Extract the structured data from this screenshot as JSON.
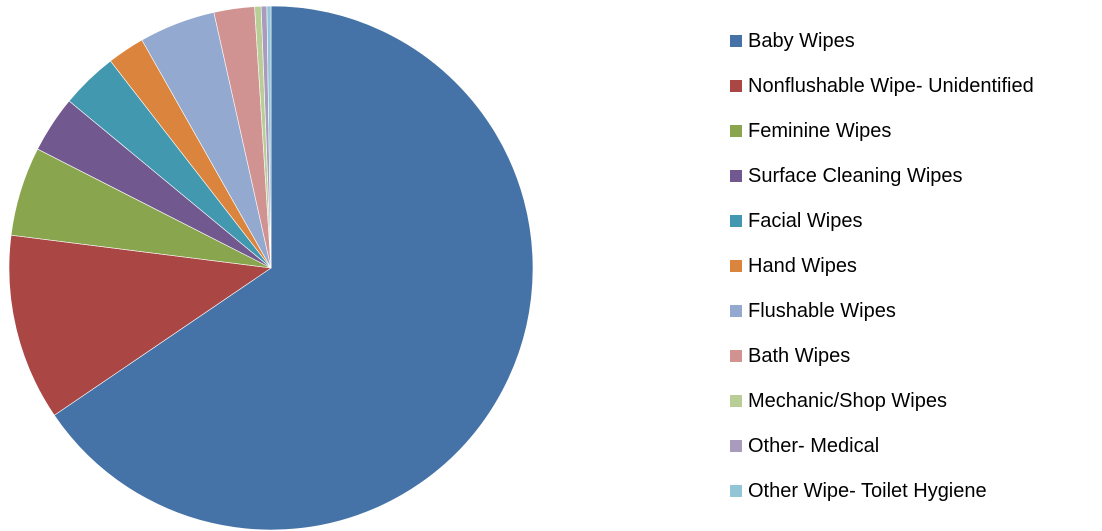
{
  "chart_data": {
    "type": "pie",
    "title": "",
    "legend_position": "right",
    "start_angle_deg": 0,
    "direction": "clockwise",
    "slices": [
      {
        "label": "Baby Wipes",
        "value": 65.5,
        "color": "#4572A7"
      },
      {
        "label": "Nonflushable Wipe- Unidentified",
        "value": 11.5,
        "color": "#AA4643"
      },
      {
        "label": "Feminine  Wipes",
        "value": 5.5,
        "color": "#89A54E"
      },
      {
        "label": "Surface Cleaning Wipes",
        "value": 3.5,
        "color": "#71588F"
      },
      {
        "label": "Facial Wipes",
        "value": 3.5,
        "color": "#4198AF"
      },
      {
        "label": "Hand Wipes",
        "value": 2.3,
        "color": "#DB843D"
      },
      {
        "label": "Flushable Wipes",
        "value": 4.7,
        "color": "#93A9CF"
      },
      {
        "label": "Bath Wipes",
        "value": 2.5,
        "color": "#D19392"
      },
      {
        "label": "Mechanic/Shop Wipes",
        "value": 0.4,
        "color": "#B9CD96"
      },
      {
        "label": "Other- Medical",
        "value": 0.35,
        "color": "#A99BBD"
      },
      {
        "label": "Other Wipe- Toilet Hygiene",
        "value": 0.25,
        "color": "#92C5D6"
      }
    ]
  }
}
